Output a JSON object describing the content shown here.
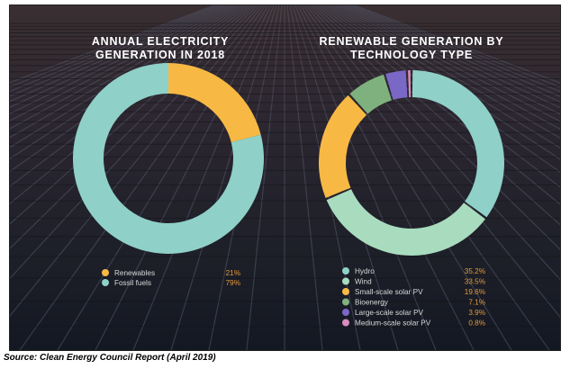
{
  "colors": {
    "Hydro": "#8fd0c8",
    "Wind": "#a9dcbf",
    "Small-scale solar PV": "#f7b944",
    "Bioenergy": "#7fb17f",
    "Large-scale solar PV": "#7a68c6",
    "Medium-scale solar PV": "#d98cc0",
    "Renewables": "#f7b944",
    "Fossil fuels": "#8fd0c8"
  },
  "chart_data": [
    {
      "type": "pie",
      "variant": "donut",
      "title": "ANNUAL ELECTRICITY GENERATION IN 2018",
      "title_lines": [
        "ANNUAL ELECTRICITY",
        "GENERATION IN 2018"
      ],
      "categories": [
        "Renewables",
        "Fossil fuels"
      ],
      "values": [
        21,
        79
      ],
      "value_labels": [
        "21%",
        "79%"
      ],
      "legend_position": "bottom"
    },
    {
      "type": "pie",
      "variant": "donut",
      "title": "RENEWABLE GENERATION BY TECHNOLOGY TYPE",
      "title_lines": [
        "RENEWABLE GENERATION BY",
        "TECHNOLOGY TYPE"
      ],
      "categories": [
        "Hydro",
        "Wind",
        "Small-scale solar PV",
        "Bioenergy",
        "Large-scale solar PV",
        "Medium-scale solar PV"
      ],
      "values": [
        35.2,
        33.5,
        19.6,
        7.1,
        3.9,
        0.8
      ],
      "value_labels": [
        "35.2%",
        "33.5%",
        "19.6%",
        "7.1%",
        "3.9%",
        "0.8%"
      ],
      "legend_position": "bottom"
    }
  ],
  "source": "Source: Clean Energy Council Report (April 2019)"
}
